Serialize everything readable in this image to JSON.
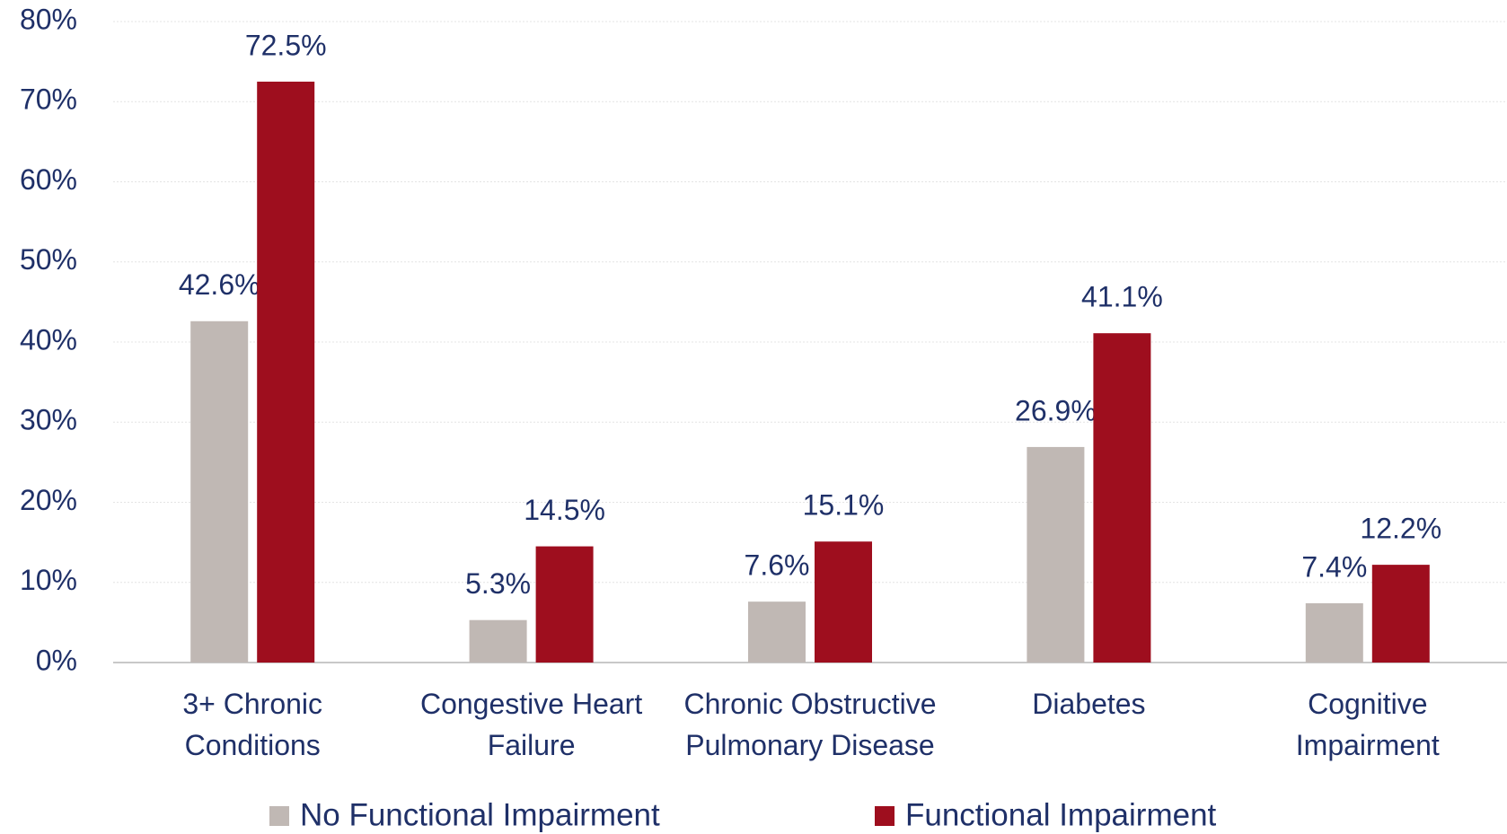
{
  "chart_data": {
    "type": "bar",
    "categories": [
      "3+ Chronic Conditions",
      "Congestive Heart Failure",
      "Chronic Obstructive Pulmonary Disease",
      "Diabetes",
      "Cognitive Impairment"
    ],
    "series": [
      {
        "name": "No Functional Impairment",
        "color": "#c0b8b4",
        "values": [
          42.6,
          5.3,
          7.6,
          26.9,
          7.4
        ],
        "value_labels": [
          "42.6%",
          "5.3%",
          "7.6%",
          "26.9%",
          "7.4%"
        ]
      },
      {
        "name": "Functional Impairment",
        "color": "#9e0e1e",
        "values": [
          72.5,
          14.5,
          15.1,
          41.1,
          12.2
        ],
        "value_labels": [
          "72.5%",
          "14.5%",
          "15.1%",
          "41.1%",
          "12.2%"
        ]
      }
    ],
    "ylim": [
      0,
      80
    ],
    "yticks": [
      {
        "value": 0,
        "label": "0%"
      },
      {
        "value": 10,
        "label": "10%"
      },
      {
        "value": 20,
        "label": "20%"
      },
      {
        "value": 30,
        "label": "30%"
      },
      {
        "value": 40,
        "label": "40%"
      },
      {
        "value": 50,
        "label": "50%"
      },
      {
        "value": 60,
        "label": "60%"
      },
      {
        "value": 70,
        "label": "70%"
      },
      {
        "value": 80,
        "label": "80%"
      }
    ],
    "grid": true,
    "legend": "bottom"
  }
}
